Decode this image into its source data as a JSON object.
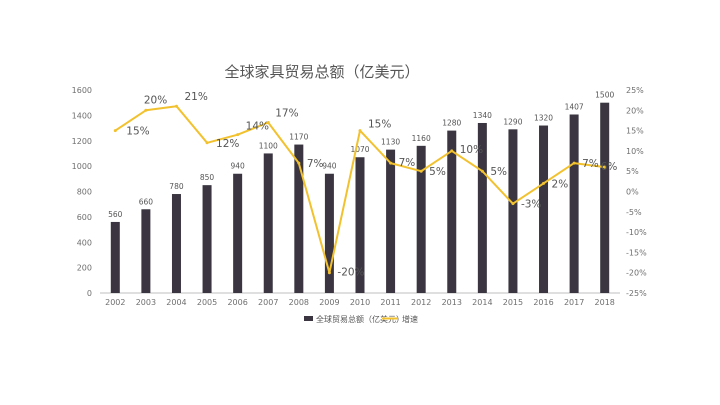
{
  "chart_data": {
    "type": "bar",
    "title": "全球家具贸易总额（亿美元）",
    "categories": [
      "2002",
      "2003",
      "2004",
      "2005",
      "2006",
      "2007",
      "2008",
      "2009",
      "2010",
      "2011",
      "2012",
      "2013",
      "2014",
      "2015",
      "2016",
      "2017",
      "2018"
    ],
    "series": [
      {
        "name": "全球贸易总额（亿美元）",
        "type": "bar",
        "axis": "left",
        "color": "#3a3540",
        "values": [
          560,
          660,
          780,
          850,
          940,
          1100,
          1170,
          940,
          1070,
          1130,
          1160,
          1280,
          1340,
          1290,
          1320,
          1407,
          1500
        ],
        "labels": [
          "560",
          "660",
          "780",
          "850",
          "940",
          "1100",
          "1170",
          "940",
          "1070",
          "1130",
          "1160",
          "1280",
          "1340",
          "1290",
          "1320",
          "1407",
          "1500"
        ]
      },
      {
        "name": "增速",
        "type": "line",
        "axis": "right",
        "color": "#f2c12e",
        "values": [
          15,
          20,
          21,
          12,
          14,
          17,
          7,
          -20,
          15,
          7,
          5,
          10,
          5,
          -3,
          2,
          7,
          6
        ],
        "labels": [
          "15%",
          "20%",
          "21%",
          "12%",
          "14%",
          "17%",
          "7%",
          "-20%",
          "15%",
          "7%",
          "5%",
          "10%",
          "5%",
          "-3%",
          "2%",
          "7%",
          "6%"
        ]
      }
    ],
    "y_left": {
      "range": [
        0,
        1600
      ],
      "ticks": [
        "0",
        "200",
        "400",
        "600",
        "800",
        "1000",
        "1200",
        "1400",
        "1600"
      ]
    },
    "y_right": {
      "range": [
        -25,
        25
      ],
      "ticks": [
        "25%",
        "20%",
        "15%",
        "10%",
        "5%",
        "0%",
        "-5%",
        "-10%",
        "-15%",
        "-20%",
        "-25%"
      ]
    },
    "grid": false,
    "legend": "bottom",
    "xlabel": "",
    "ylabel": ""
  }
}
